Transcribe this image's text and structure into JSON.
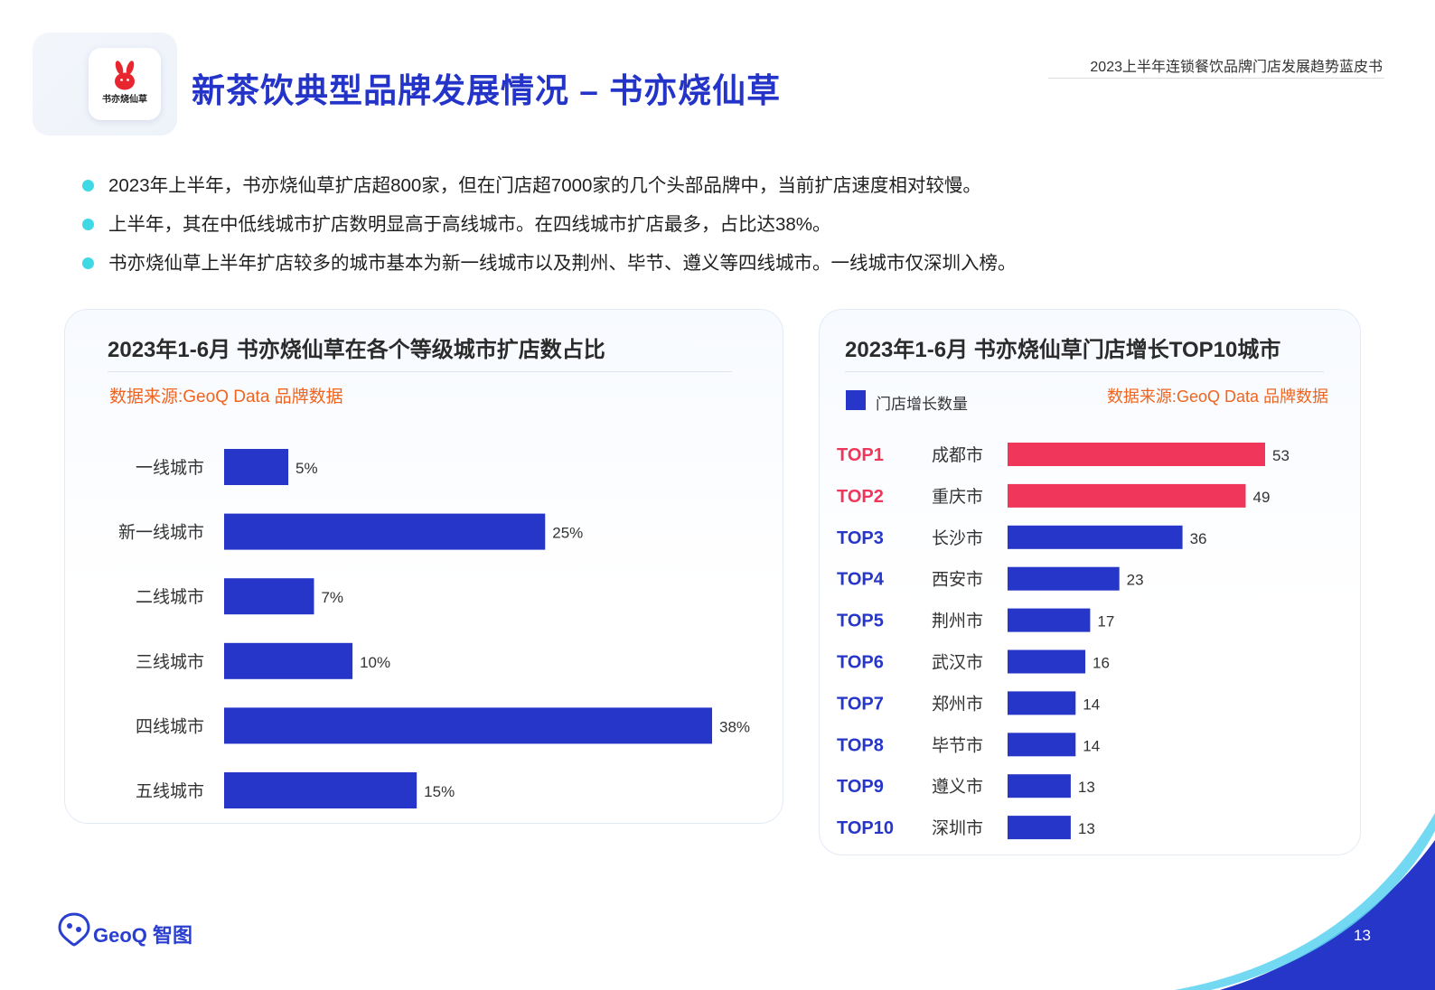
{
  "header": {
    "title": "新茶饮典型品牌发展情况 – 书亦烧仙草",
    "report_name": "2023上半年连锁餐饮品牌门店发展趋势蓝皮书",
    "logo_text": "书亦烧仙草"
  },
  "bullets": [
    "2023年上半年，书亦烧仙草扩店超800家，但在门店超7000家的几个头部品牌中，当前扩店速度相对较慢。",
    "上半年，其在中低线城市扩店数明显高于高线城市。在四线城市扩店最多，占比达38%。",
    "书亦烧仙草上半年扩店较多的城市基本为新一线城市以及荆州、毕节、遵义等四线城市。一线城市仅深圳入榜。"
  ],
  "footer": {
    "brand": "GeoQ 智图",
    "page": "13"
  },
  "colors": {
    "accent": "#2536c9",
    "highlight": "#f0365a",
    "source": "#f0641f",
    "bullet": "#3ed9e4"
  },
  "chart_data": [
    {
      "type": "bar",
      "orientation": "horizontal",
      "title": "2023年1-6月 书亦烧仙草在各个等级城市扩店数占比",
      "source": "数据来源:GeoQ Data 品牌数据",
      "categories": [
        "一线城市",
        "新一线城市",
        "二线城市",
        "三线城市",
        "四线城市",
        "五线城市"
      ],
      "values": [
        5,
        25,
        7,
        10,
        38,
        15
      ],
      "value_labels": [
        "5%",
        "25%",
        "7%",
        "10%",
        "38%",
        "15%"
      ],
      "unit": "%",
      "xlim": [
        0,
        38
      ],
      "color": "#2536c9"
    },
    {
      "type": "bar",
      "orientation": "horizontal",
      "title": "2023年1-6月 书亦烧仙草门店增长TOP10城市",
      "source": "数据来源:GeoQ Data 品牌数据",
      "legend": "门店增长数量",
      "ranks": [
        "TOP1",
        "TOP2",
        "TOP3",
        "TOP4",
        "TOP5",
        "TOP6",
        "TOP7",
        "TOP8",
        "TOP9",
        "TOP10"
      ],
      "categories": [
        "成都市",
        "重庆市",
        "长沙市",
        "西安市",
        "荆州市",
        "武汉市",
        "郑州市",
        "毕节市",
        "遵义市",
        "深圳市"
      ],
      "values": [
        53,
        49,
        36,
        23,
        17,
        16,
        14,
        14,
        13,
        13
      ],
      "xlim": [
        0,
        53
      ],
      "highlight_top": 2,
      "colors": {
        "default": "#2536c9",
        "highlight": "#f0365a"
      }
    }
  ]
}
